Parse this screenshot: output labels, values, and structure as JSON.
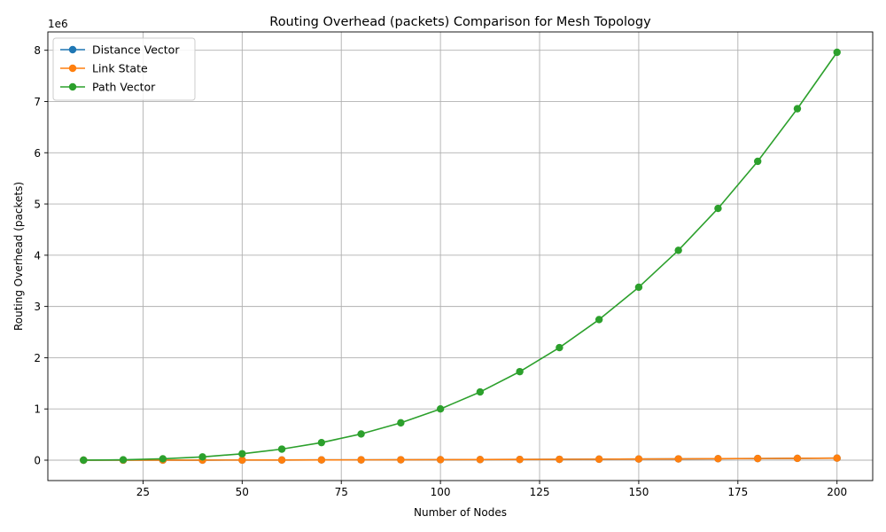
{
  "chart_data": {
    "type": "line",
    "title": "Routing Overhead (packets) Comparison for Mesh Topology",
    "xlabel": "Number of Nodes",
    "ylabel": "Routing Overhead (packets)",
    "y_scale_label": "1e6",
    "x": [
      10,
      20,
      30,
      40,
      50,
      60,
      70,
      80,
      90,
      100,
      110,
      120,
      130,
      140,
      150,
      160,
      170,
      180,
      190,
      200
    ],
    "xlim": [
      1.0,
      209.0
    ],
    "ylim": [
      -0.398,
      8.358
    ],
    "x_ticks": [
      25,
      50,
      75,
      100,
      125,
      150,
      175,
      200
    ],
    "y_ticks": [
      0,
      1,
      2,
      3,
      4,
      5,
      6,
      7,
      8
    ],
    "grid": true,
    "legend_position": "top-left",
    "series": [
      {
        "name": "Distance Vector",
        "color": "#1f77b4",
        "values": [
          0.0001,
          0.0004,
          0.0009,
          0.0016,
          0.0025,
          0.0036,
          0.0049,
          0.0064,
          0.0081,
          0.01,
          0.0121,
          0.0144,
          0.0169,
          0.0196,
          0.0225,
          0.0256,
          0.0289,
          0.0324,
          0.0361,
          0.04
        ]
      },
      {
        "name": "Link State",
        "color": "#ff7f0e",
        "values": [
          0.0001,
          0.0004,
          0.0009,
          0.0016,
          0.0025,
          0.0036,
          0.0049,
          0.0064,
          0.0081,
          0.01,
          0.0121,
          0.0144,
          0.0169,
          0.0196,
          0.0225,
          0.0256,
          0.0289,
          0.0324,
          0.0361,
          0.04
        ]
      },
      {
        "name": "Path Vector",
        "color": "#2ca02c",
        "values": [
          0.001,
          0.008,
          0.027,
          0.064,
          0.125,
          0.216,
          0.343,
          0.512,
          0.729,
          1.0,
          1.331,
          1.728,
          2.197,
          2.744,
          3.375,
          4.096,
          4.913,
          5.832,
          6.859,
          7.96
        ]
      }
    ]
  }
}
